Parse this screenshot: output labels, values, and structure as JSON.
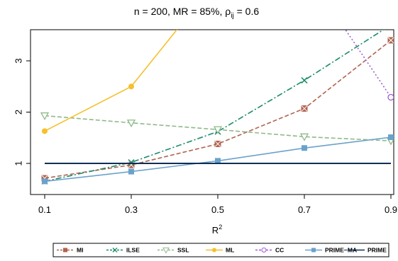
{
  "chart_data": {
    "type": "line",
    "title": "n = 200, MR = 85%, ρ",
    "title_sub": "ij",
    "title_rest": " = 0.6",
    "xlabel": "R",
    "xlabel_sup": "2",
    "ylabel": "",
    "x": [
      0.1,
      0.3,
      0.5,
      0.7,
      0.9
    ],
    "x_ticks": [
      "0.1",
      "0.3",
      "0.5",
      "0.7",
      "0.9"
    ],
    "y_ticks": [
      "1",
      "2",
      "3"
    ],
    "xlim": [
      0.1,
      0.9
    ],
    "ylim": [
      0.5,
      3.6
    ],
    "grid": false,
    "legend_position": "bottom",
    "series": [
      {
        "name": "MI",
        "color": "#b0634f",
        "dash": "6,3",
        "marker": "square-x",
        "values": [
          0.71,
          0.97,
          1.38,
          2.07,
          3.4
        ]
      },
      {
        "name": "ILSE",
        "color": "#1b8a6b",
        "dash": "8,3,2,3",
        "marker": "x",
        "values": [
          0.65,
          1.02,
          1.62,
          2.62,
          3.7
        ]
      },
      {
        "name": "SSL",
        "color": "#8fb98a",
        "dash": "6,3",
        "marker": "triangle-down",
        "values": [
          1.93,
          1.79,
          1.66,
          1.52,
          1.44
        ]
      },
      {
        "name": "ML",
        "color": "#f5c02b",
        "dash": "",
        "marker": "circle-filled",
        "values": [
          1.63,
          2.5,
          4.6,
          null,
          null
        ]
      },
      {
        "name": "CC",
        "color": "#a15ad1",
        "dash": "2,3",
        "marker": "circle-open",
        "values": [
          null,
          null,
          null,
          4.8,
          2.29
        ]
      },
      {
        "name": "PRIME−MA",
        "color": "#6aa2cc",
        "dash": "",
        "marker": "square-filled",
        "values": [
          0.65,
          0.84,
          1.05,
          1.3,
          1.51
        ]
      },
      {
        "name": "PRIME",
        "color": "#0d2f57",
        "dash": "",
        "marker": "none",
        "values": [
          1.0,
          1.0,
          1.0,
          1.0,
          1.0
        ]
      }
    ]
  }
}
